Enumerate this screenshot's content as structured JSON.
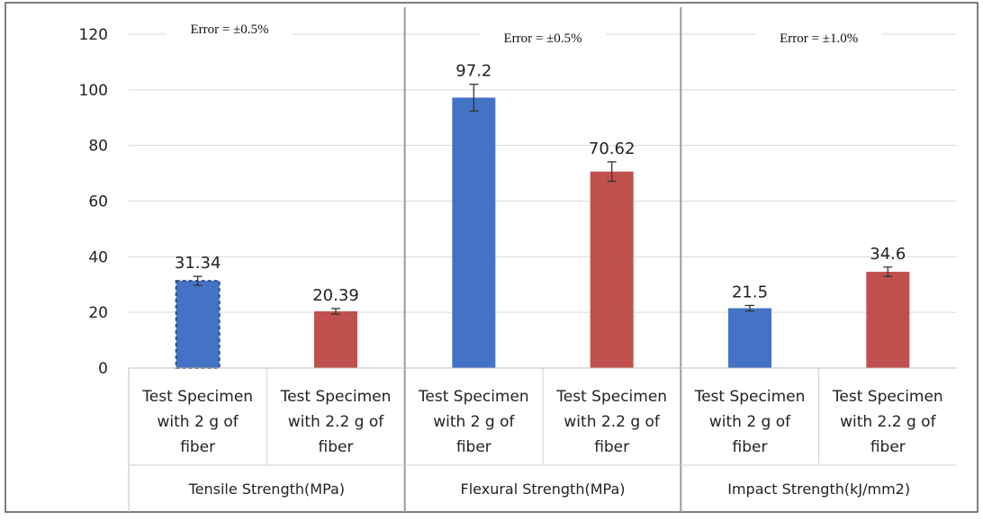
{
  "chart_data": {
    "type": "bar",
    "ylim": [
      0,
      120
    ],
    "yticks": [
      0,
      20,
      40,
      60,
      80,
      100,
      120
    ],
    "grid": true,
    "colors": {
      "blue": "#4472c4",
      "red": "#c0504d"
    },
    "groups": [
      {
        "label": "Tensile Strength(MPa)",
        "error_note": "Error = ±0.5%",
        "bars": [
          {
            "category": [
              "Test Specimen",
              "with 2 g of",
              "fiber"
            ],
            "value": 31.34,
            "label": "31.34",
            "color": "blue",
            "err": 1.6,
            "dashed": true
          },
          {
            "category": [
              "Test Specimen",
              "with 2.2 g of",
              "fiber"
            ],
            "value": 20.39,
            "label": "20.39",
            "color": "red",
            "err": 1.0
          }
        ]
      },
      {
        "label": "Flexural Strength(MPa)",
        "error_note": "Error = ±0.5%",
        "bars": [
          {
            "category": [
              "Test Specimen",
              "with 2 g of",
              "fiber"
            ],
            "value": 97.2,
            "label": "97.2",
            "color": "blue",
            "err": 4.8
          },
          {
            "category": [
              "Test Specimen",
              "with  2.2 g of",
              "fiber"
            ],
            "value": 70.62,
            "label": "70.62",
            "color": "red",
            "err": 3.5
          }
        ]
      },
      {
        "label": "Impact Strength(kJ/mm2)",
        "error_note": "Error = ±1.0%",
        "bars": [
          {
            "category": [
              "Test Specimen",
              "with  2 g of",
              "fiber"
            ],
            "value": 21.5,
            "label": "21.5",
            "color": "blue",
            "err": 1.0
          },
          {
            "category": [
              "Test Specimen",
              "with  2.2 g of",
              "fiber"
            ],
            "value": 34.6,
            "label": "34.6",
            "color": "red",
            "err": 1.7
          }
        ]
      }
    ]
  }
}
